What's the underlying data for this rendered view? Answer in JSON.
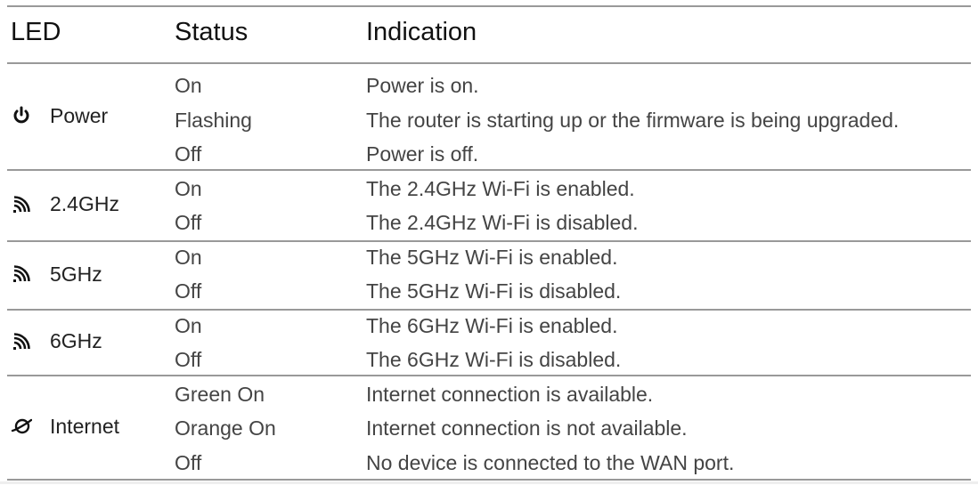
{
  "headers": {
    "led": "LED",
    "status": "Status",
    "indication": "Indication"
  },
  "rows": [
    {
      "led": "Power",
      "icon": "power-icon",
      "entries": [
        {
          "status": "On",
          "indication": "Power is on."
        },
        {
          "status": "Flashing",
          "indication": "The router is starting up or the firmware is being upgraded."
        },
        {
          "status": "Off",
          "indication": "Power is off."
        }
      ]
    },
    {
      "led": "2.4GHz",
      "icon": "wifi-icon",
      "entries": [
        {
          "status": "On",
          "indication": "The 2.4GHz Wi-Fi is enabled."
        },
        {
          "status": "Off",
          "indication": "The 2.4GHz Wi-Fi is disabled."
        }
      ]
    },
    {
      "led": "5GHz",
      "icon": "wifi-icon",
      "entries": [
        {
          "status": "On",
          "indication": "The 5GHz Wi-Fi is enabled."
        },
        {
          "status": "Off",
          "indication": "The 5GHz Wi-Fi is disabled."
        }
      ]
    },
    {
      "led": "6GHz",
      "icon": "wifi-icon",
      "entries": [
        {
          "status": "On",
          "indication": "The 6GHz Wi-Fi is enabled."
        },
        {
          "status": "Off",
          "indication": "The 6GHz Wi-Fi is disabled."
        }
      ]
    },
    {
      "led": "Internet",
      "icon": "globe-icon",
      "entries": [
        {
          "status": "Green On",
          "indication": "Internet connection is available."
        },
        {
          "status": "Orange On",
          "indication": "Internet connection is not available."
        },
        {
          "status": "Off",
          "indication": "No device is connected to the WAN port."
        }
      ]
    }
  ]
}
